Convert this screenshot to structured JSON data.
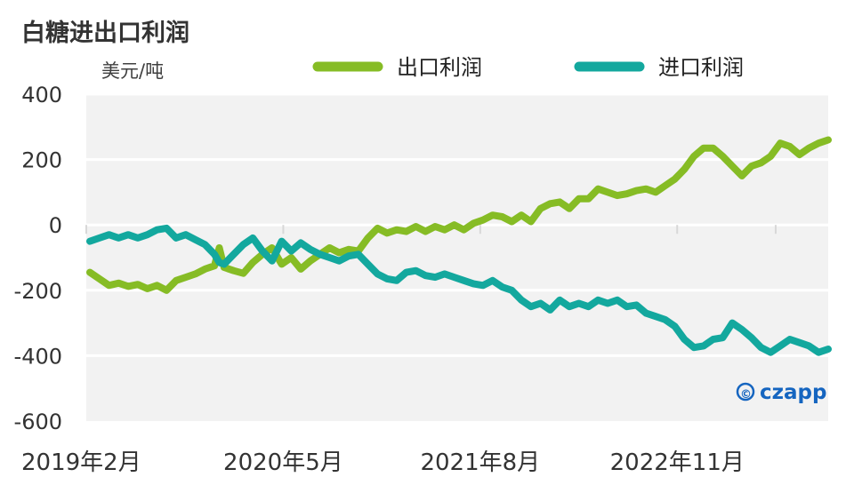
{
  "chart_data": {
    "type": "line",
    "title": "白糖进出口利润",
    "ylabel": "美元/吨",
    "ylim": [
      -600,
      400
    ],
    "yticks": [
      "400",
      "200",
      "0",
      "-200",
      "-400",
      "-600"
    ],
    "yticks_values": [
      400,
      200,
      0,
      -200,
      -400,
      -600
    ],
    "xticks": [
      "2019年2月",
      "2020年5月",
      "2021年8月",
      "2022年11月"
    ],
    "xticks_months": [
      0,
      15,
      30,
      45
    ],
    "xlim_months": [
      0,
      56.5
    ],
    "grid": true,
    "legend_position": "top",
    "series": [
      {
        "name": "出口利润",
        "color": "#86bc25",
        "points": [
          [
            0,
            -145
          ],
          [
            1,
            -165
          ],
          [
            2,
            -185
          ],
          [
            3,
            -178
          ],
          [
            4,
            -188
          ],
          [
            5,
            -182
          ],
          [
            6,
            -195
          ],
          [
            7,
            -185
          ],
          [
            8,
            -200
          ],
          [
            9,
            -170
          ],
          [
            10,
            -160
          ],
          [
            11,
            -150
          ],
          [
            12,
            -135
          ],
          [
            13,
            -125
          ],
          [
            13.5,
            -70
          ],
          [
            14,
            -130
          ],
          [
            15,
            -140
          ],
          [
            16,
            -148
          ],
          [
            17,
            -115
          ],
          [
            18,
            -90
          ],
          [
            19,
            -70
          ],
          [
            20,
            -120
          ],
          [
            21,
            -100
          ],
          [
            22,
            -135
          ],
          [
            23,
            -110
          ],
          [
            24,
            -90
          ],
          [
            25,
            -70
          ],
          [
            26,
            -85
          ],
          [
            27,
            -75
          ],
          [
            28,
            -80
          ],
          [
            29,
            -40
          ],
          [
            30,
            -10
          ],
          [
            31,
            -25
          ],
          [
            32,
            -15
          ],
          [
            33,
            -20
          ],
          [
            34,
            -5
          ],
          [
            35,
            -20
          ],
          [
            36,
            -5
          ],
          [
            37,
            -15
          ],
          [
            38,
            0
          ],
          [
            39,
            -15
          ],
          [
            40,
            5
          ],
          [
            41,
            15
          ],
          [
            42,
            30
          ],
          [
            43,
            25
          ],
          [
            44,
            10
          ],
          [
            45,
            30
          ],
          [
            46,
            10
          ],
          [
            47,
            50
          ],
          [
            48,
            65
          ],
          [
            49,
            70
          ],
          [
            50,
            50
          ],
          [
            51,
            80
          ],
          [
            52,
            80
          ],
          [
            53,
            110
          ],
          [
            54,
            100
          ],
          [
            55,
            90
          ],
          [
            56,
            95
          ],
          [
            57,
            105
          ],
          [
            58,
            110
          ],
          [
            59,
            100
          ],
          [
            60,
            120
          ],
          [
            61,
            140
          ],
          [
            62,
            170
          ],
          [
            63,
            210
          ],
          [
            64,
            235
          ],
          [
            65,
            235
          ],
          [
            66,
            210
          ],
          [
            67,
            180
          ],
          [
            68,
            150
          ],
          [
            69,
            180
          ],
          [
            70,
            190
          ],
          [
            71,
            210
          ],
          [
            72,
            250
          ],
          [
            73,
            240
          ],
          [
            74,
            215
          ],
          [
            75,
            235
          ],
          [
            76,
            250
          ],
          [
            77,
            260
          ]
        ]
      },
      {
        "name": "进口利润",
        "color": "#13a89e",
        "points": [
          [
            0,
            -50
          ],
          [
            1,
            -40
          ],
          [
            2,
            -30
          ],
          [
            3,
            -40
          ],
          [
            4,
            -30
          ],
          [
            5,
            -40
          ],
          [
            6,
            -30
          ],
          [
            7,
            -15
          ],
          [
            8,
            -10
          ],
          [
            9,
            -40
          ],
          [
            10,
            -30
          ],
          [
            11,
            -45
          ],
          [
            12,
            -60
          ],
          [
            13,
            -90
          ],
          [
            13.5,
            -115
          ],
          [
            14,
            -120
          ],
          [
            15,
            -90
          ],
          [
            16,
            -60
          ],
          [
            17,
            -40
          ],
          [
            18,
            -80
          ],
          [
            19,
            -110
          ],
          [
            20,
            -50
          ],
          [
            21,
            -80
          ],
          [
            22,
            -55
          ],
          [
            23,
            -75
          ],
          [
            24,
            -90
          ],
          [
            25,
            -100
          ],
          [
            26,
            -110
          ],
          [
            27,
            -95
          ],
          [
            28,
            -90
          ],
          [
            29,
            -120
          ],
          [
            30,
            -150
          ],
          [
            31,
            -165
          ],
          [
            32,
            -170
          ],
          [
            33,
            -145
          ],
          [
            34,
            -140
          ],
          [
            35,
            -155
          ],
          [
            36,
            -160
          ],
          [
            37,
            -150
          ],
          [
            38,
            -160
          ],
          [
            39,
            -170
          ],
          [
            40,
            -180
          ],
          [
            41,
            -185
          ],
          [
            42,
            -170
          ],
          [
            43,
            -190
          ],
          [
            44,
            -200
          ],
          [
            45,
            -230
          ],
          [
            46,
            -250
          ],
          [
            47,
            -240
          ],
          [
            48,
            -260
          ],
          [
            49,
            -230
          ],
          [
            50,
            -250
          ],
          [
            51,
            -240
          ],
          [
            52,
            -250
          ],
          [
            53,
            -230
          ],
          [
            54,
            -240
          ],
          [
            55,
            -230
          ],
          [
            56,
            -250
          ],
          [
            57,
            -245
          ],
          [
            58,
            -270
          ],
          [
            59,
            -280
          ],
          [
            60,
            -290
          ],
          [
            61,
            -310
          ],
          [
            62,
            -350
          ],
          [
            63,
            -375
          ],
          [
            64,
            -370
          ],
          [
            65,
            -350
          ],
          [
            66,
            -345
          ],
          [
            67,
            -300
          ],
          [
            68,
            -320
          ],
          [
            69,
            -345
          ],
          [
            70,
            -375
          ],
          [
            71,
            -390
          ],
          [
            72,
            -370
          ],
          [
            73,
            -350
          ],
          [
            74,
            -360
          ],
          [
            75,
            -370
          ],
          [
            76,
            -390
          ],
          [
            77,
            -380
          ]
        ]
      }
    ]
  },
  "watermark": {
    "symbol": "©",
    "brand": "czapp",
    "color": "#1565c0"
  }
}
